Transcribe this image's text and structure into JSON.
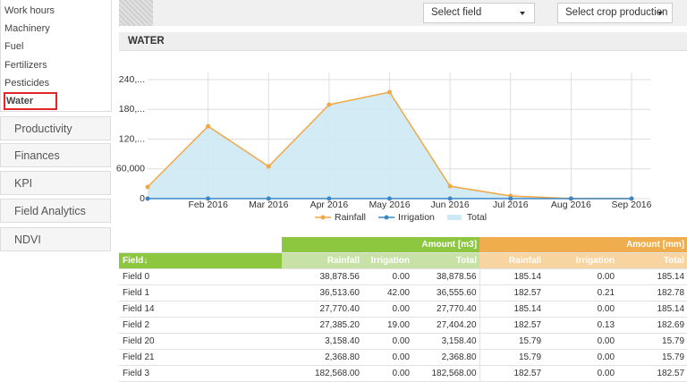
{
  "sidebar": {
    "items": [
      "Work hours",
      "Machinery",
      "Fuel",
      "Fertilizers",
      "Pesticides",
      "Water"
    ],
    "nav": [
      "Productivity",
      "Finances",
      "KPI",
      "Field Analytics",
      "NDVI"
    ]
  },
  "toolbar": {
    "select_field": "Select field",
    "select_crop": "Select crop production"
  },
  "section_title": "WATER",
  "chart_data": {
    "type": "line",
    "categories": [
      null,
      "Feb 2016",
      "Mar 2016",
      "Apr 2016",
      "May 2016",
      "Jun 2016",
      "Jul 2016",
      "Aug 2016",
      "Sep 2016"
    ],
    "series": [
      {
        "name": "Rainfall",
        "color": "#f2a845",
        "values": [
          23500,
          146000,
          65000,
          189500,
          214700,
          25000,
          5400,
          0,
          0
        ]
      },
      {
        "name": "Irrigation",
        "color": "#3d87c6",
        "values": [
          0,
          0,
          0,
          0,
          0,
          0,
          0,
          0,
          0
        ]
      },
      {
        "name": "Total",
        "type": "area",
        "color": "#cde9f4",
        "values": [
          23500,
          146000,
          65000,
          189500,
          214700,
          25000,
          5400,
          0,
          0
        ]
      }
    ],
    "ylim": [
      0,
      240000
    ],
    "yticks": [
      0,
      {
        "value": 60000,
        "label": "60,000"
      },
      {
        "value": 120000,
        "label": "120,..."
      },
      {
        "value": 180000,
        "label": "180,..."
      },
      {
        "value": 240000,
        "label": "240,..."
      }
    ],
    "grid": true
  },
  "table": {
    "header_groups": [
      "Amount [m3]",
      "Amount [mm]"
    ],
    "columns": [
      "Field↓",
      "Rainfall",
      "Irrigation",
      "Total",
      "Rainfall",
      "Irrigation",
      "Total"
    ],
    "rows": [
      [
        "Field 0",
        "38,878.56",
        "0.00",
        "38,878.56",
        "185.14",
        "0.00",
        "185.14"
      ],
      [
        "Field 1",
        "36,513.60",
        "42.00",
        "36,555.60",
        "182.57",
        "0.21",
        "182.78"
      ],
      [
        "Field 14",
        "27,770.40",
        "0.00",
        "27,770.40",
        "185.14",
        "0.00",
        "185.14"
      ],
      [
        "Field 2",
        "27,385.20",
        "19.00",
        "27,404.20",
        "182.57",
        "0.13",
        "182.69"
      ],
      [
        "Field 20",
        "3,158.40",
        "0.00",
        "3,158.40",
        "15.79",
        "0.00",
        "15.79"
      ],
      [
        "Field 21",
        "2,368.80",
        "0.00",
        "2,368.80",
        "15.79",
        "0.00",
        "15.79"
      ],
      [
        "Field 3",
        "182,568.00",
        "0.00",
        "182,568.00",
        "182.57",
        "0.00",
        "182.57"
      ]
    ]
  }
}
